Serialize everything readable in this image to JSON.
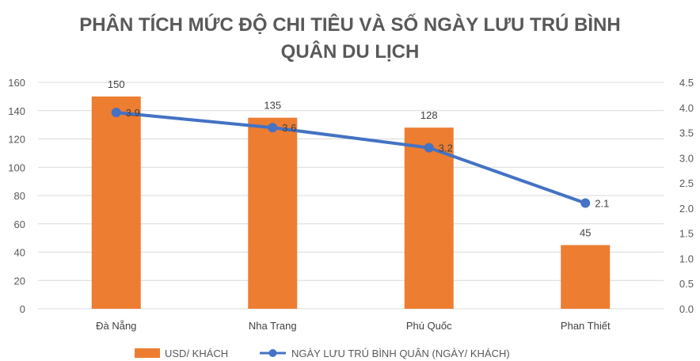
{
  "chart_data": {
    "type": "bar",
    "title_lines": [
      "PHÂN TÍCH MỨC ĐỘ CHI TIÊU VÀ SỐ NGÀY LƯU TRÚ BÌNH",
      "QUÂN DU LỊCH"
    ],
    "categories": [
      "Đà Nẵng",
      "Nha Trang",
      "Phú Quốc",
      "Phan Thiết"
    ],
    "series": [
      {
        "name": "USD/ KHÁCH",
        "type": "bar",
        "axis": "left",
        "color": "#ED7D31",
        "values": [
          150,
          135,
          128,
          45
        ],
        "labels": [
          "150",
          "135",
          "128",
          "45"
        ]
      },
      {
        "name": "NGÀY LƯU TRÚ BÌNH QUÂN (NGÀY/ KHÁCH)",
        "type": "line",
        "axis": "right",
        "color": "#4472C4",
        "values": [
          3.9,
          3.6,
          3.2,
          2.1
        ],
        "labels": [
          "3.9",
          "3.6",
          "3.2",
          "2.1"
        ]
      }
    ],
    "y_left": {
      "min": 0,
      "max": 160,
      "ticks": [
        "0",
        "20",
        "40",
        "60",
        "80",
        "100",
        "120",
        "140",
        "160"
      ]
    },
    "y_right": {
      "min": 0,
      "max": 4.5,
      "ticks": [
        "0.0",
        "0.5",
        "1.0",
        "1.5",
        "2.0",
        "2.5",
        "3.0",
        "3.5",
        "4.0",
        "4.5"
      ]
    },
    "grid": true,
    "gridColor": "#D9D9D9",
    "legend_position": "bottom"
  }
}
